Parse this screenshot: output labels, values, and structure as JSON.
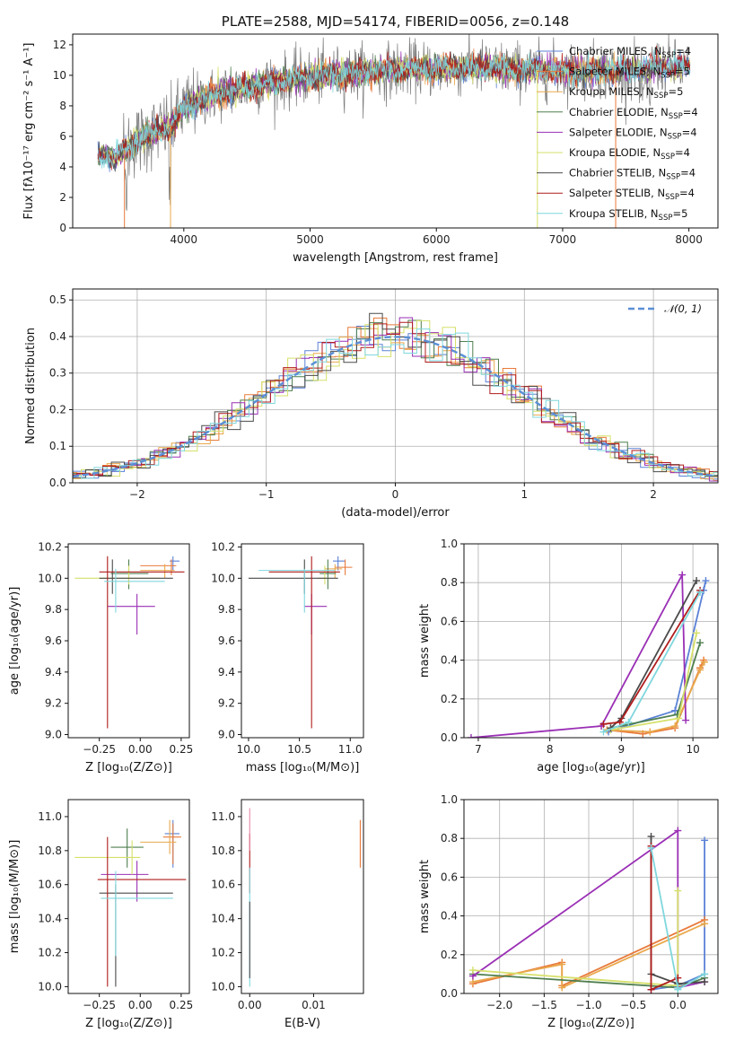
{
  "colors": {
    "Chabrier MILES": "#5b82d6",
    "Salpeter MILES": "#e87a3a",
    "Kroupa MILES": "#e9a84c",
    "Chabrier ELODIE": "#4f7f4f",
    "Salpeter ELODIE": "#9a2fb5",
    "Kroupa ELODIE": "#d6e06a",
    "Chabrier STELIB": "#4a4a4a",
    "Salpeter STELIB": "#b01c1c",
    "Kroupa STELIB": "#7fd7dd",
    "data": "#7a7a7a",
    "pink": "#e88aa8",
    "gauss": "#5b8fd6"
  },
  "chart_data": [
    {
      "id": "spectrum",
      "type": "line",
      "title": "PLATE=2588, MJD=54174, FIBERID=0056, z=0.148",
      "xlabel": "wavelength [Angstrom, rest frame]",
      "ylabel": "Flux [fλ10⁻¹⁷ erg cm⁻² s⁻¹ A⁻¹]",
      "xlim": [
        3120,
        8230
      ],
      "ylim": [
        0,
        12.7
      ],
      "xticks": [
        "4000",
        "5000",
        "6000",
        "7000",
        "8000"
      ],
      "yticks": [
        "0",
        "2",
        "4",
        "6",
        "8",
        "10",
        "12"
      ],
      "legend_position": "upper-right",
      "legend": [
        {
          "name": "Chabrier MILES, N",
          "sub": "SSP",
          "tail": "=4"
        },
        {
          "name": "Salpeter MILES, N",
          "sub": "SSP",
          "tail": "=5"
        },
        {
          "name": "Kroupa MILES, N",
          "sub": "SSP",
          "tail": "=5"
        },
        {
          "name": "Chabrier ELODIE, N",
          "sub": "SSP",
          "tail": "=4"
        },
        {
          "name": "Salpeter ELODIE, N",
          "sub": "SSP",
          "tail": "=4"
        },
        {
          "name": "Kroupa ELODIE, N",
          "sub": "SSP",
          "tail": "=4"
        },
        {
          "name": "Chabrier STELIB, N",
          "sub": "SSP",
          "tail": "=4"
        },
        {
          "name": "Salpeter STELIB, N",
          "sub": "SSP",
          "tail": "=4"
        },
        {
          "name": "Kroupa STELIB, N",
          "sub": "SSP",
          "tail": "=5"
        }
      ],
      "continuum": [
        [
          3320,
          4.8
        ],
        [
          3450,
          4.6
        ],
        [
          3600,
          5.6
        ],
        [
          3700,
          6.0
        ],
        [
          3800,
          6.4
        ],
        [
          3900,
          6.7
        ],
        [
          4000,
          7.8
        ],
        [
          4100,
          8.3
        ],
        [
          4300,
          8.9
        ],
        [
          4600,
          9.4
        ],
        [
          5000,
          9.9
        ],
        [
          5400,
          10.2
        ],
        [
          5800,
          10.4
        ],
        [
          6200,
          10.5
        ],
        [
          6600,
          10.4
        ],
        [
          7000,
          10.3
        ],
        [
          7400,
          10.3
        ],
        [
          7800,
          10.6
        ],
        [
          8010,
          10.4
        ]
      ]
    },
    {
      "id": "residuals",
      "type": "histogram",
      "xlabel": "(data-model)/error",
      "ylabel": "Normed distribution",
      "xlim": [
        -2.5,
        2.5
      ],
      "ylim": [
        0,
        0.53
      ],
      "xticks": [
        "−2",
        "−1",
        "0",
        "1",
        "2"
      ],
      "yticks": [
        "0.0",
        "0.1",
        "0.2",
        "0.3",
        "0.4",
        "0.5"
      ],
      "legend": "𝒩(0, 1)",
      "legend_position": "upper-right",
      "grid": true
    },
    {
      "id": "age-vs-Z",
      "type": "errorbar",
      "xlabel": "Z [log₁₀(Z/Z⊙)]",
      "ylabel": "age  [log₁₀(age/yr)]",
      "xlim": [
        -0.44,
        0.3
      ],
      "ylim": [
        8.98,
        10.22
      ],
      "xticks": [
        "−0.25",
        "0.00",
        "0.25"
      ],
      "yticks": [
        "9.0",
        "9.2",
        "9.4",
        "9.6",
        "9.8",
        "10.0",
        "10.2"
      ],
      "points": [
        {
          "s": "Chabrier MILES",
          "x": 0.2,
          "y": 10.11,
          "ex": [
            0.18,
            0.24
          ],
          "ey": [
            10.05,
            10.14
          ]
        },
        {
          "s": "Salpeter MILES",
          "x": 0.19,
          "y": 10.08,
          "ex": [
            0.0,
            0.22
          ],
          "ey": [
            10.02,
            10.12
          ]
        },
        {
          "s": "Kroupa MILES",
          "x": 0.15,
          "y": 10.05,
          "ex": [
            0.0,
            0.21
          ],
          "ey": [
            10.0,
            10.09
          ]
        },
        {
          "s": "Chabrier ELODIE",
          "x": -0.07,
          "y": 10.03,
          "ex": [
            -0.18,
            0.05
          ],
          "ey": [
            9.93,
            10.12
          ]
        },
        {
          "s": "Salpeter ELODIE",
          "x": -0.02,
          "y": 9.82,
          "ex": [
            -0.2,
            0.09
          ],
          "ey": [
            9.64,
            9.9
          ]
        },
        {
          "s": "Kroupa ELODIE",
          "x": -0.07,
          "y": 10.0,
          "ex": [
            -0.4,
            0.12
          ],
          "ey": [
            9.96,
            10.08
          ]
        },
        {
          "s": "Chabrier STELIB",
          "x": -0.17,
          "y": 10.0,
          "ex": [
            -0.25,
            0.2
          ],
          "ey": [
            9.9,
            10.12
          ]
        },
        {
          "s": "Salpeter STELIB",
          "x": -0.2,
          "y": 10.04,
          "ex": [
            -0.25,
            0.27
          ],
          "ey": [
            9.04,
            10.14
          ]
        },
        {
          "s": "Kroupa STELIB",
          "x": -0.15,
          "y": 9.98,
          "ex": [
            -0.22,
            0.15
          ],
          "ey": [
            9.78,
            10.06
          ]
        }
      ]
    },
    {
      "id": "age-vs-mass",
      "type": "errorbar",
      "xlabel": "mass [log₁₀(M/M⊙)]",
      "xlim": [
        9.93,
        11.13
      ],
      "ylim": [
        8.98,
        10.22
      ],
      "xticks": [
        "10.0",
        "10.5",
        "11.0"
      ],
      "yticks": [
        "9.0",
        "9.2",
        "9.4",
        "9.6",
        "9.8",
        "10.0",
        "10.2"
      ],
      "points": [
        {
          "s": "Chabrier MILES",
          "x": 10.88,
          "y": 10.11,
          "ex": [
            10.83,
            10.95
          ],
          "ey": [
            10.05,
            10.14
          ]
        },
        {
          "s": "Salpeter MILES",
          "x": 10.95,
          "y": 10.07,
          "ex": [
            10.85,
            11.02
          ],
          "ey": [
            10.02,
            10.12
          ]
        },
        {
          "s": "Kroupa MILES",
          "x": 10.85,
          "y": 10.06,
          "ex": [
            10.75,
            10.92
          ],
          "ey": [
            10.0,
            10.09
          ]
        },
        {
          "s": "Chabrier ELODIE",
          "x": 10.78,
          "y": 10.03,
          "ex": [
            10.7,
            10.86
          ],
          "ey": [
            9.93,
            10.12
          ]
        },
        {
          "s": "Salpeter ELODIE",
          "x": 10.62,
          "y": 9.82,
          "ex": [
            10.55,
            10.77
          ],
          "ey": [
            9.64,
            9.9
          ]
        },
        {
          "s": "Kroupa ELODIE",
          "x": 10.75,
          "y": 10.0,
          "ex": [
            10.68,
            10.8
          ],
          "ey": [
            9.96,
            10.08
          ]
        },
        {
          "s": "Chabrier STELIB",
          "x": 10.55,
          "y": 10.0,
          "ex": [
            10.0,
            10.88
          ],
          "ey": [
            9.9,
            10.12
          ]
        },
        {
          "s": "Salpeter STELIB",
          "x": 10.62,
          "y": 10.04,
          "ex": [
            10.2,
            10.9
          ],
          "ey": [
            9.04,
            10.14
          ]
        },
        {
          "s": "Kroupa STELIB",
          "x": 10.55,
          "y": 10.05,
          "ex": [
            10.1,
            10.85
          ],
          "ey": [
            9.78,
            10.06
          ]
        }
      ]
    },
    {
      "id": "weight-vs-age",
      "type": "line",
      "xlabel": "age  [log₁₀(age/yr)]",
      "ylabel": "mass weight",
      "xlim": [
        6.8,
        10.35
      ],
      "ylim": [
        0,
        1.0
      ],
      "xticks": [
        "7",
        "8",
        "9",
        "10"
      ],
      "yticks": [
        "0.0",
        "0.2",
        "0.4",
        "0.6",
        "0.8",
        "1.0"
      ],
      "grid": true,
      "series": [
        {
          "s": "Chabrier MILES",
          "pts": [
            [
              8.82,
              0.03
            ],
            [
              9.75,
              0.14
            ],
            [
              10.18,
              0.81
            ],
            [
              10.15,
              0.76
            ]
          ]
        },
        {
          "s": "Salpeter MILES",
          "pts": [
            [
              8.8,
              0.04
            ],
            [
              9.3,
              0.02
            ],
            [
              9.75,
              0.05
            ],
            [
              10.1,
              0.36
            ],
            [
              10.15,
              0.4
            ]
          ]
        },
        {
          "s": "Kroupa MILES",
          "pts": [
            [
              8.8,
              0.04
            ],
            [
              9.4,
              0.03
            ],
            [
              9.75,
              0.06
            ],
            [
              10.1,
              0.35
            ],
            [
              10.16,
              0.39
            ]
          ]
        },
        {
          "s": "Chabrier ELODIE",
          "pts": [
            [
              8.85,
              0.05
            ],
            [
              9.78,
              0.12
            ],
            [
              10.1,
              0.49
            ]
          ]
        },
        {
          "s": "Salpeter ELODIE",
          "pts": [
            [
              6.9,
              0.0
            ],
            [
              8.72,
              0.06
            ],
            [
              9.85,
              0.84
            ],
            [
              9.9,
              0.09
            ]
          ]
        },
        {
          "s": "Kroupa ELODIE",
          "pts": [
            [
              8.85,
              0.04
            ],
            [
              9.8,
              0.1
            ],
            [
              10.05,
              0.54
            ]
          ]
        },
        {
          "s": "Chabrier STELIB",
          "pts": [
            [
              8.85,
              0.05
            ],
            [
              9.0,
              0.1
            ],
            [
              10.05,
              0.81
            ]
          ]
        },
        {
          "s": "Salpeter STELIB",
          "pts": [
            [
              8.75,
              0.07
            ],
            [
              8.98,
              0.08
            ],
            [
              10.1,
              0.76
            ]
          ]
        },
        {
          "s": "Kroupa STELIB",
          "pts": [
            [
              8.75,
              0.03
            ],
            [
              9.1,
              0.08
            ],
            [
              10.1,
              0.75
            ]
          ]
        }
      ]
    },
    {
      "id": "mass-vs-Z",
      "type": "errorbar",
      "xlabel": "Z [log₁₀(Z/Z⊙)]",
      "ylabel": "mass [log₁₀(M/M⊙)]",
      "xlim": [
        -0.44,
        0.3
      ],
      "ylim": [
        9.96,
        11.1
      ],
      "xticks": [
        "−0.25",
        "0.00",
        "0.25"
      ],
      "yticks": [
        "10.0",
        "10.2",
        "10.4",
        "10.6",
        "10.8",
        "11.0"
      ],
      "points": [
        {
          "s": "Chabrier MILES",
          "x": 0.2,
          "y": 10.9,
          "ex": [
            0.15,
            0.24
          ],
          "ey": [
            10.7,
            10.98
          ]
        },
        {
          "s": "Salpeter MILES",
          "x": 0.2,
          "y": 10.88,
          "ex": [
            0.14,
            0.25
          ],
          "ey": [
            10.72,
            10.96
          ]
        },
        {
          "s": "Kroupa MILES",
          "x": 0.18,
          "y": 10.85,
          "ex": [
            0.0,
            0.22
          ],
          "ey": [
            10.78,
            10.98
          ]
        },
        {
          "s": "Chabrier ELODIE",
          "x": -0.08,
          "y": 10.82,
          "ex": [
            -0.18,
            0.02
          ],
          "ey": [
            10.7,
            10.93
          ]
        },
        {
          "s": "Salpeter ELODIE",
          "x": -0.02,
          "y": 10.66,
          "ex": [
            -0.24,
            0.05
          ],
          "ey": [
            10.5,
            10.74
          ]
        },
        {
          "s": "Kroupa ELODIE",
          "x": -0.05,
          "y": 10.76,
          "ex": [
            -0.4,
            0.0
          ],
          "ey": [
            10.66,
            10.86
          ]
        },
        {
          "s": "Chabrier STELIB",
          "x": -0.15,
          "y": 10.55,
          "ex": [
            -0.25,
            0.2
          ],
          "ey": [
            10.0,
            10.6
          ]
        },
        {
          "s": "Salpeter STELIB",
          "x": -0.2,
          "y": 10.63,
          "ex": [
            -0.26,
            0.28
          ],
          "ey": [
            10.0,
            10.88
          ]
        },
        {
          "s": "Kroupa STELIB",
          "x": -0.15,
          "y": 10.52,
          "ex": [
            -0.24,
            0.2
          ],
          "ey": [
            10.18,
            10.68
          ]
        }
      ]
    },
    {
      "id": "mass-vs-ebv",
      "type": "errorbar",
      "xlabel": "E(B-V)",
      "xlim": [
        -0.0013,
        0.0178
      ],
      "ylim": [
        9.96,
        11.1
      ],
      "xticks": [
        "0.00",
        "0.01"
      ],
      "yticks": [
        "10.0",
        "10.2",
        "10.4",
        "10.6",
        "10.8",
        "11.0"
      ],
      "points": [
        {
          "s": "Salpeter STELIB",
          "x": 0.0,
          "y": 10.8,
          "ex": [
            0.0,
            0.0
          ],
          "ey": [
            10.55,
            10.9
          ]
        },
        {
          "s": "Kroupa STELIB",
          "x": 0.0,
          "y": 10.6,
          "ex": [
            0.0,
            0.0
          ],
          "ey": [
            10.0,
            10.7
          ]
        },
        {
          "s": "Chabrier STELIB",
          "x": 0.0,
          "y": 10.2,
          "ex": [
            0.0,
            0.0
          ],
          "ey": [
            10.05,
            10.5
          ]
        },
        {
          "s": "pink",
          "x": 0.0,
          "y": 10.95,
          "ex": [
            0.0,
            0.0
          ],
          "ey": [
            10.8,
            11.05
          ]
        },
        {
          "s": "Salpeter MILES",
          "x": 0.0173,
          "y": 10.85,
          "ex": [
            0.0173,
            0.0173
          ],
          "ey": [
            10.7,
            10.98
          ]
        }
      ]
    },
    {
      "id": "weight-vs-Z",
      "type": "line",
      "xlabel": "Z [log₁₀(Z/Z⊙)]",
      "ylabel": "mass weight",
      "xlim": [
        -2.4,
        0.45
      ],
      "ylim": [
        0,
        1.0
      ],
      "xticks": [
        "−2.0",
        "−1.5",
        "−1.0",
        "−0.5",
        "0.0"
      ],
      "yticks": [
        "0.0",
        "0.2",
        "0.4",
        "0.6",
        "0.8",
        "1.0"
      ],
      "grid": true,
      "series": [
        {
          "s": "Chabrier MILES",
          "pts": [
            [
              -0.3,
              0.02
            ],
            [
              0.0,
              0.04
            ],
            [
              0.3,
              0.1
            ],
            [
              0.3,
              0.79
            ]
          ]
        },
        {
          "s": "Salpeter MILES",
          "pts": [
            [
              -2.3,
              0.05
            ],
            [
              -1.3,
              0.16
            ],
            [
              -1.3,
              0.04
            ],
            [
              0.3,
              0.38
            ]
          ]
        },
        {
          "s": "Kroupa MILES",
          "pts": [
            [
              -2.3,
              0.06
            ],
            [
              -1.3,
              0.15
            ],
            [
              -1.3,
              0.03
            ],
            [
              0.3,
              0.36
            ]
          ]
        },
        {
          "s": "Chabrier ELODIE",
          "pts": [
            [
              -2.3,
              0.1
            ],
            [
              0.0,
              0.03
            ],
            [
              0.3,
              0.08
            ]
          ]
        },
        {
          "s": "Salpeter ELODIE",
          "pts": [
            [
              -2.3,
              0.09
            ],
            [
              0.0,
              0.84
            ],
            [
              0.0,
              0.03
            ],
            [
              0.3,
              0.06
            ]
          ]
        },
        {
          "s": "Kroupa ELODIE",
          "pts": [
            [
              -2.3,
              0.12
            ],
            [
              0.0,
              0.04
            ],
            [
              0.0,
              0.53
            ]
          ]
        },
        {
          "s": "Chabrier STELIB",
          "pts": [
            [
              -0.3,
              0.81
            ],
            [
              -0.3,
              0.1
            ],
            [
              0.0,
              0.05
            ],
            [
              0.3,
              0.06
            ]
          ]
        },
        {
          "s": "Salpeter STELIB",
          "pts": [
            [
              -0.3,
              0.76
            ],
            [
              -0.3,
              0.02
            ],
            [
              0.0,
              0.08
            ]
          ]
        },
        {
          "s": "Kroupa STELIB",
          "pts": [
            [
              -0.3,
              0.75
            ],
            [
              0.0,
              0.03
            ],
            [
              0.0,
              0.02
            ],
            [
              0.3,
              0.1
            ]
          ]
        }
      ]
    }
  ]
}
